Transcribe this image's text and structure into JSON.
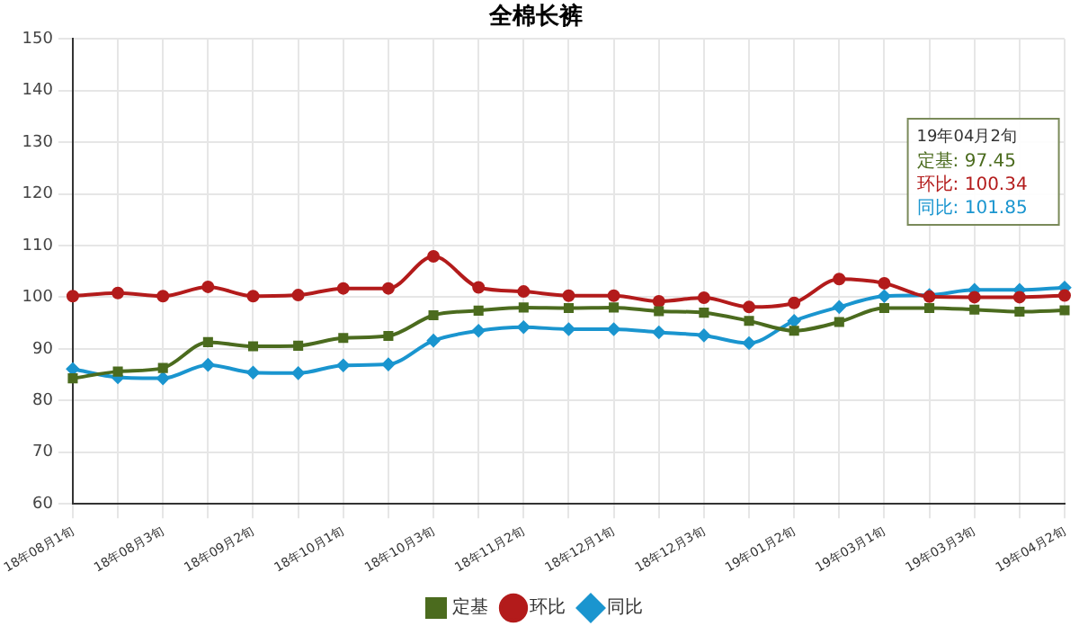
{
  "chart_data": {
    "type": "line",
    "title": "全棉长裤",
    "categories": [
      "18年08月1旬",
      null,
      "18年08月3旬",
      null,
      "18年09月2旬",
      null,
      "18年10月1旬",
      null,
      "18年10月3旬",
      null,
      "18年11月2旬",
      null,
      "18年12月1旬",
      null,
      "18年12月3旬",
      null,
      "19年01月2旬",
      null,
      "19年03月1旬",
      null,
      "19年03月3旬",
      null,
      "19年04月2旬"
    ],
    "series": [
      {
        "name": "定基",
        "color": "#4b6b1e",
        "marker": "square",
        "values": [
          84.3,
          85.6,
          86.3,
          91.3,
          90.5,
          90.6,
          92.1,
          92.5,
          96.5,
          97.4,
          98.0,
          97.9,
          98.0,
          97.3,
          97.0,
          95.4,
          93.5,
          95.2,
          97.9,
          97.9,
          97.6,
          97.2,
          97.45
        ]
      },
      {
        "name": "环比",
        "color": "#b31b1b",
        "marker": "circle",
        "values": [
          100.2,
          100.8,
          100.2,
          102.0,
          100.2,
          100.4,
          101.7,
          101.7,
          107.9,
          101.9,
          101.1,
          100.3,
          100.3,
          99.2,
          99.9,
          98.1,
          98.9,
          103.5,
          102.7,
          100.1,
          100.0,
          100.0,
          100.34
        ]
      },
      {
        "name": "同比",
        "color": "#1a95cf",
        "marker": "diamond",
        "values": [
          86.1,
          84.5,
          84.3,
          86.9,
          85.4,
          85.3,
          86.8,
          87.0,
          91.6,
          93.5,
          94.2,
          93.8,
          93.8,
          93.2,
          92.6,
          91.1,
          95.4,
          98.1,
          100.2,
          100.4,
          101.4,
          101.4,
          101.85
        ]
      }
    ],
    "ylim": [
      60,
      150
    ],
    "yticks": [
      60,
      70,
      80,
      90,
      100,
      110,
      120,
      130,
      140,
      150
    ],
    "grid": true,
    "legend": "bottom",
    "line_style": "solid",
    "annotations": [
      "19年04月2旬",
      "定基: 97.45",
      "环比: 100.34",
      "同比: 101.85"
    ]
  }
}
